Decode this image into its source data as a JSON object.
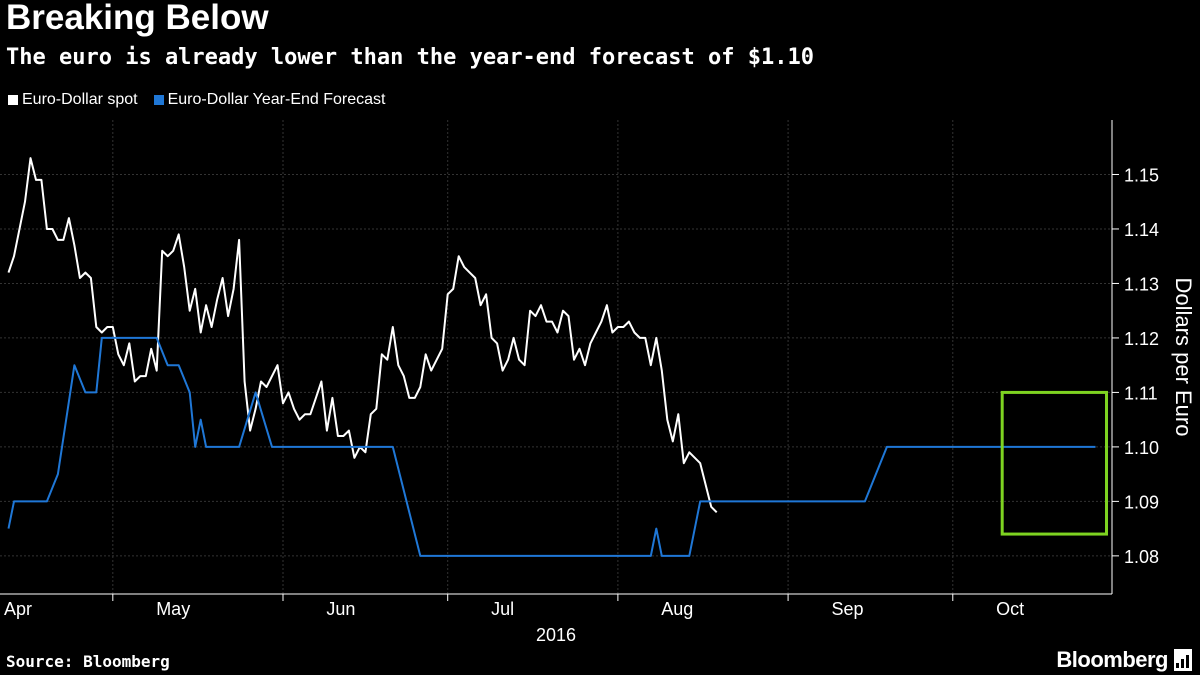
{
  "header": {
    "title": "Breaking Below",
    "subtitle": "The euro is already lower than the year-end forecast of $1.10"
  },
  "footer": {
    "source": "Source: Bloomberg",
    "brand": "Bloomberg"
  },
  "colors": {
    "background": "#000000",
    "spot": "#ffffff",
    "forecast": "#1f77d6",
    "highlight": "#7ed321",
    "grid": "#333333"
  },
  "icons": {
    "brand_icon": "terminal-icon"
  },
  "chart_data": {
    "type": "line",
    "x_unit": "days from 2016-04-01",
    "ylabel": "Dollars per Euro",
    "ylim": [
      1.073,
      1.16
    ],
    "xlim": [
      0,
      206
    ],
    "y_ticks": [
      "1.08",
      "1.09",
      "1.10",
      "1.11",
      "1.12",
      "1.13",
      "1.14",
      "1.15"
    ],
    "x_labels": [
      {
        "label": "Apr",
        "x": 0
      },
      {
        "label": "May",
        "x": 30
      },
      {
        "label": "Jun",
        "x": 61
      },
      {
        "label": "Jul",
        "x": 91
      },
      {
        "label": "Aug",
        "x": 122
      },
      {
        "label": "Sep",
        "x": 153
      },
      {
        "label": "Oct",
        "x": 183
      }
    ],
    "x_ticks": [
      19,
      50,
      80,
      111,
      142,
      172
    ],
    "year_label": "2016",
    "grid": true,
    "legend_position": "top-left",
    "series": [
      {
        "name": "Euro-Dollar spot",
        "color": "#ffffff",
        "points": [
          [
            0,
            1.132
          ],
          [
            1,
            1.135
          ],
          [
            3,
            1.145
          ],
          [
            4,
            1.153
          ],
          [
            5,
            1.149
          ],
          [
            6,
            1.149
          ],
          [
            7,
            1.14
          ],
          [
            8,
            1.14
          ],
          [
            9,
            1.138
          ],
          [
            10,
            1.138
          ],
          [
            11,
            1.142
          ],
          [
            12,
            1.137
          ],
          [
            13,
            1.131
          ],
          [
            14,
            1.132
          ],
          [
            15,
            1.131
          ],
          [
            16,
            1.122
          ],
          [
            17,
            1.121
          ],
          [
            18,
            1.122
          ],
          [
            19,
            1.122
          ],
          [
            20,
            1.117
          ],
          [
            21,
            1.115
          ],
          [
            22,
            1.119
          ],
          [
            23,
            1.112
          ],
          [
            24,
            1.113
          ],
          [
            25,
            1.113
          ],
          [
            26,
            1.118
          ],
          [
            27,
            1.114
          ],
          [
            28,
            1.136
          ],
          [
            29,
            1.135
          ],
          [
            30,
            1.136
          ],
          [
            31,
            1.139
          ],
          [
            32,
            1.133
          ],
          [
            33,
            1.125
          ],
          [
            34,
            1.129
          ],
          [
            35,
            1.121
          ],
          [
            36,
            1.126
          ],
          [
            37,
            1.122
          ],
          [
            38,
            1.127
          ],
          [
            39,
            1.131
          ],
          [
            40,
            1.124
          ],
          [
            41,
            1.129
          ],
          [
            42,
            1.138
          ],
          [
            43,
            1.112
          ],
          [
            44,
            1.103
          ],
          [
            45,
            1.107
          ],
          [
            46,
            1.112
          ],
          [
            47,
            1.111
          ],
          [
            48,
            1.113
          ],
          [
            49,
            1.115
          ],
          [
            50,
            1.108
          ],
          [
            51,
            1.11
          ],
          [
            52,
            1.107
          ],
          [
            53,
            1.105
          ],
          [
            54,
            1.106
          ],
          [
            55,
            1.106
          ],
          [
            56,
            1.109
          ],
          [
            57,
            1.112
          ],
          [
            58,
            1.103
          ],
          [
            59,
            1.109
          ],
          [
            60,
            1.102
          ],
          [
            61,
            1.102
          ],
          [
            62,
            1.103
          ],
          [
            63,
            1.098
          ],
          [
            64,
            1.1
          ],
          [
            65,
            1.099
          ],
          [
            66,
            1.106
          ],
          [
            67,
            1.107
          ],
          [
            68,
            1.117
          ],
          [
            69,
            1.116
          ],
          [
            70,
            1.122
          ],
          [
            71,
            1.115
          ],
          [
            72,
            1.113
          ],
          [
            73,
            1.109
          ],
          [
            74,
            1.109
          ],
          [
            75,
            1.111
          ],
          [
            76,
            1.117
          ],
          [
            77,
            1.114
          ],
          [
            78,
            1.116
          ],
          [
            79,
            1.118
          ],
          [
            80,
            1.128
          ],
          [
            81,
            1.129
          ],
          [
            82,
            1.135
          ],
          [
            83,
            1.133
          ],
          [
            84,
            1.132
          ],
          [
            85,
            1.131
          ],
          [
            86,
            1.126
          ],
          [
            87,
            1.128
          ],
          [
            88,
            1.12
          ],
          [
            89,
            1.119
          ],
          [
            90,
            1.114
          ],
          [
            91,
            1.116
          ],
          [
            92,
            1.12
          ],
          [
            93,
            1.116
          ],
          [
            94,
            1.115
          ],
          [
            95,
            1.125
          ],
          [
            96,
            1.124
          ],
          [
            97,
            1.126
          ],
          [
            98,
            1.123
          ],
          [
            99,
            1.123
          ],
          [
            100,
            1.121
          ],
          [
            101,
            1.125
          ],
          [
            102,
            1.124
          ],
          [
            103,
            1.116
          ],
          [
            104,
            1.118
          ],
          [
            105,
            1.115
          ],
          [
            106,
            1.119
          ],
          [
            107,
            1.121
          ],
          [
            108,
            1.123
          ],
          [
            109,
            1.126
          ],
          [
            110,
            1.121
          ],
          [
            111,
            1.122
          ],
          [
            112,
            1.122
          ],
          [
            113,
            1.123
          ],
          [
            114,
            1.121
          ],
          [
            115,
            1.12
          ],
          [
            116,
            1.12
          ],
          [
            117,
            1.115
          ],
          [
            118,
            1.12
          ],
          [
            119,
            1.114
          ],
          [
            120,
            1.105
          ],
          [
            121,
            1.101
          ],
          [
            122,
            1.106
          ],
          [
            123,
            1.097
          ],
          [
            124,
            1.099
          ],
          [
            125,
            1.098
          ],
          [
            126,
            1.097
          ],
          [
            127,
            1.093
          ],
          [
            128,
            1.089
          ],
          [
            129,
            1.088
          ]
        ]
      },
      {
        "name": "Euro-Dollar Year-End Forecast",
        "color": "#1f77d6",
        "points": [
          [
            0,
            1.085
          ],
          [
            1,
            1.09
          ],
          [
            7,
            1.09
          ],
          [
            9,
            1.095
          ],
          [
            12,
            1.115
          ],
          [
            14,
            1.11
          ],
          [
            16,
            1.11
          ],
          [
            17,
            1.12
          ],
          [
            27,
            1.12
          ],
          [
            29,
            1.115
          ],
          [
            31,
            1.115
          ],
          [
            33,
            1.11
          ],
          [
            34,
            1.1
          ],
          [
            35,
            1.105
          ],
          [
            36,
            1.1
          ],
          [
            42,
            1.1
          ],
          [
            45,
            1.11
          ],
          [
            48,
            1.1
          ],
          [
            70,
            1.1
          ],
          [
            75,
            1.08
          ],
          [
            117,
            1.08
          ],
          [
            118,
            1.085
          ],
          [
            119,
            1.08
          ],
          [
            124,
            1.08
          ],
          [
            126,
            1.09
          ],
          [
            156,
            1.09
          ],
          [
            158,
            1.095
          ],
          [
            160,
            1.1
          ],
          [
            198,
            1.1
          ]
        ]
      }
    ],
    "highlight_box": {
      "x": [
        181,
        200
      ],
      "y": [
        1.084,
        1.11
      ]
    }
  }
}
